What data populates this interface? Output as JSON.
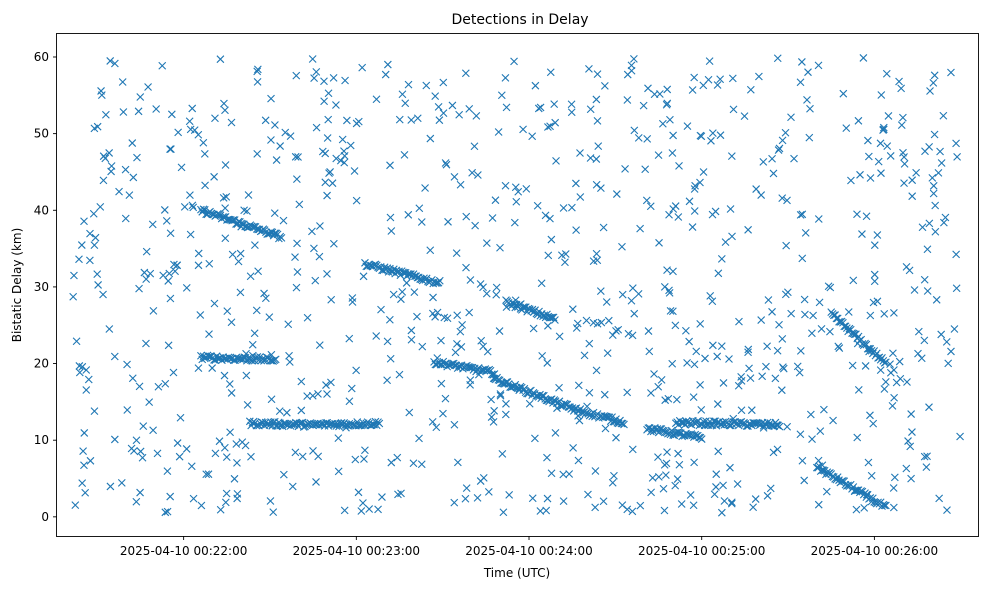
{
  "chart_data": {
    "type": "scatter",
    "title": "Detections in Delay",
    "xlabel": "Time (UTC)",
    "ylabel": "Bistatic Delay (km)",
    "x_ticks": [
      "2025-04-10 00:22:00",
      "2025-04-10 00:23:00",
      "2025-04-10 00:24:00",
      "2025-04-10 00:25:00",
      "2025-04-10 00:26:00"
    ],
    "y_ticks": [
      "0",
      "10",
      "20",
      "30",
      "40",
      "50",
      "60"
    ],
    "xlim": [
      "2025-04-10 00:21:16",
      "2025-04-10 00:26:36"
    ],
    "ylim": [
      -2.5,
      63
    ],
    "marker": "x",
    "grid": false,
    "color": "#1f77b4",
    "tracks": [
      {
        "start": "2025-04-10 00:22:06",
        "end": "2025-04-10 00:22:34",
        "y_start": 40.0,
        "y_end": 36.5
      },
      {
        "start": "2025-04-10 00:22:06",
        "end": "2025-04-10 00:22:32",
        "y_start": 20.8,
        "y_end": 20.5
      },
      {
        "start": "2025-04-10 00:22:23",
        "end": "2025-04-10 00:22:44",
        "y_start": 12.2,
        "y_end": 12.0
      },
      {
        "start": "2025-04-10 00:22:44",
        "end": "2025-04-10 00:23:08",
        "y_start": 12.0,
        "y_end": 12.2
      },
      {
        "start": "2025-04-10 00:23:03",
        "end": "2025-04-10 00:23:29",
        "y_start": 33.0,
        "y_end": 30.5
      },
      {
        "start": "2025-04-10 00:23:27",
        "end": "2025-04-10 00:23:48",
        "y_start": 20.2,
        "y_end": 18.8
      },
      {
        "start": "2025-04-10 00:23:48",
        "end": "2025-04-10 00:24:16",
        "y_start": 18.0,
        "y_end": 14.0
      },
      {
        "start": "2025-04-10 00:23:52",
        "end": "2025-04-10 00:24:09",
        "y_start": 28.0,
        "y_end": 25.8
      },
      {
        "start": "2025-04-10 00:24:16",
        "end": "2025-04-10 00:24:33",
        "y_start": 14.0,
        "y_end": 12.3
      },
      {
        "start": "2025-04-10 00:24:41",
        "end": "2025-04-10 00:25:00",
        "y_start": 11.5,
        "y_end": 10.3
      },
      {
        "start": "2025-04-10 00:24:51",
        "end": "2025-04-10 00:25:27",
        "y_start": 12.3,
        "y_end": 12.0
      },
      {
        "start": "2025-04-10 00:25:40",
        "end": "2025-04-10 00:26:04",
        "y_start": 6.5,
        "y_end": 1.2
      },
      {
        "start": "2025-04-10 00:25:45",
        "end": "2025-04-10 00:26:04",
        "y_start": 26.5,
        "y_end": 20.0
      }
    ]
  }
}
